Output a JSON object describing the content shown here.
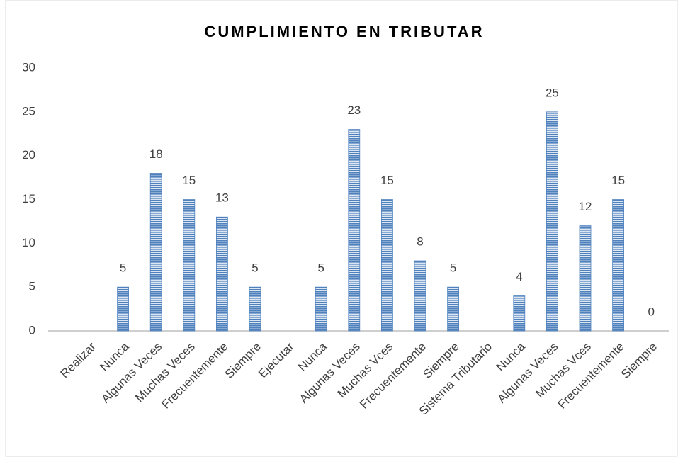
{
  "chart_data": {
    "type": "bar",
    "title": "CUMPLIMIENTO EN TRIBUTAR",
    "categories": [
      "Realizar",
      "Nunca",
      "Algunas Veces",
      "Muchas Veces",
      "Frecuentemente",
      "Siempre",
      "Ejecutar",
      "Nunca",
      "Algunas Veces",
      "Muchas Vces",
      "Frecuentemente",
      "Siempre",
      "Sistema Tributario",
      "Nunca",
      "Algunas Veces",
      "Muchas Vces",
      "Frecuentemente",
      "Siempre"
    ],
    "values": [
      null,
      5,
      18,
      15,
      13,
      5,
      null,
      5,
      23,
      15,
      8,
      5,
      null,
      4,
      25,
      12,
      15,
      0
    ],
    "color": "#4f81bd",
    "ylim": [
      0,
      30
    ],
    "yticks": [
      0,
      5,
      10,
      15,
      20,
      25,
      30
    ],
    "grid": false
  }
}
